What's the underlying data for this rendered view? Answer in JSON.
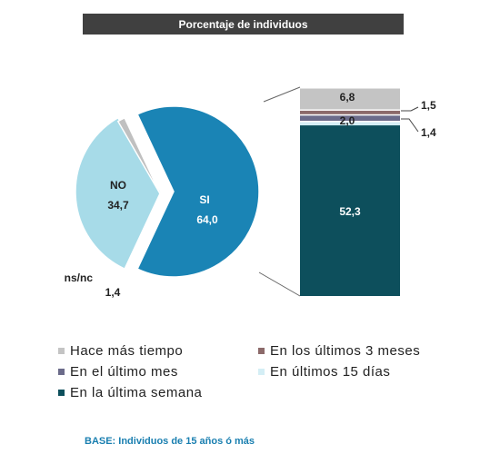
{
  "header": {
    "title": "Porcentaje de individuos"
  },
  "chart_data": [
    {
      "type": "pie",
      "slices": [
        {
          "label": "SI",
          "value": 64.0,
          "display": "64,0",
          "color": "#1a84b5"
        },
        {
          "label": "NO",
          "value": 34.7,
          "display": "34,7",
          "color": "#a7dbe8"
        },
        {
          "label": "ns/nc",
          "value": 1.4,
          "display": "1,4",
          "color": "#c0c0c0"
        }
      ]
    },
    {
      "type": "bar",
      "stacked": true,
      "segments": [
        {
          "label": "En la última semana",
          "value": 52.3,
          "display": "52,3",
          "color": "#0d4f5c"
        },
        {
          "label": "En últimos 15 días",
          "value": 1.4,
          "display": "1,4",
          "color": "#d4eef5"
        },
        {
          "label": "En el último mes",
          "value": 2.0,
          "display": "2,0",
          "color": "#6b6b8a"
        },
        {
          "label": "En los últimos 3 meses",
          "value": 1.5,
          "display": "1,5",
          "color": "#8c6a6a"
        },
        {
          "label": "Hace más tiempo",
          "value": 6.8,
          "display": "6,8",
          "color": "#c4c4c4"
        }
      ]
    }
  ],
  "legend": [
    {
      "label": "Hace más tiempo",
      "color": "#c4c4c4"
    },
    {
      "label": "En los últimos 3 meses",
      "color": "#8c6a6a"
    },
    {
      "label": "En el último mes",
      "color": "#6b6b8a"
    },
    {
      "label": "En últimos 15 días",
      "color": "#d4eef5"
    },
    {
      "label": "En la última semana",
      "color": "#0d4f5c"
    }
  ],
  "footer": {
    "base_note": "BASE: Individuos de 15 años ó más"
  }
}
